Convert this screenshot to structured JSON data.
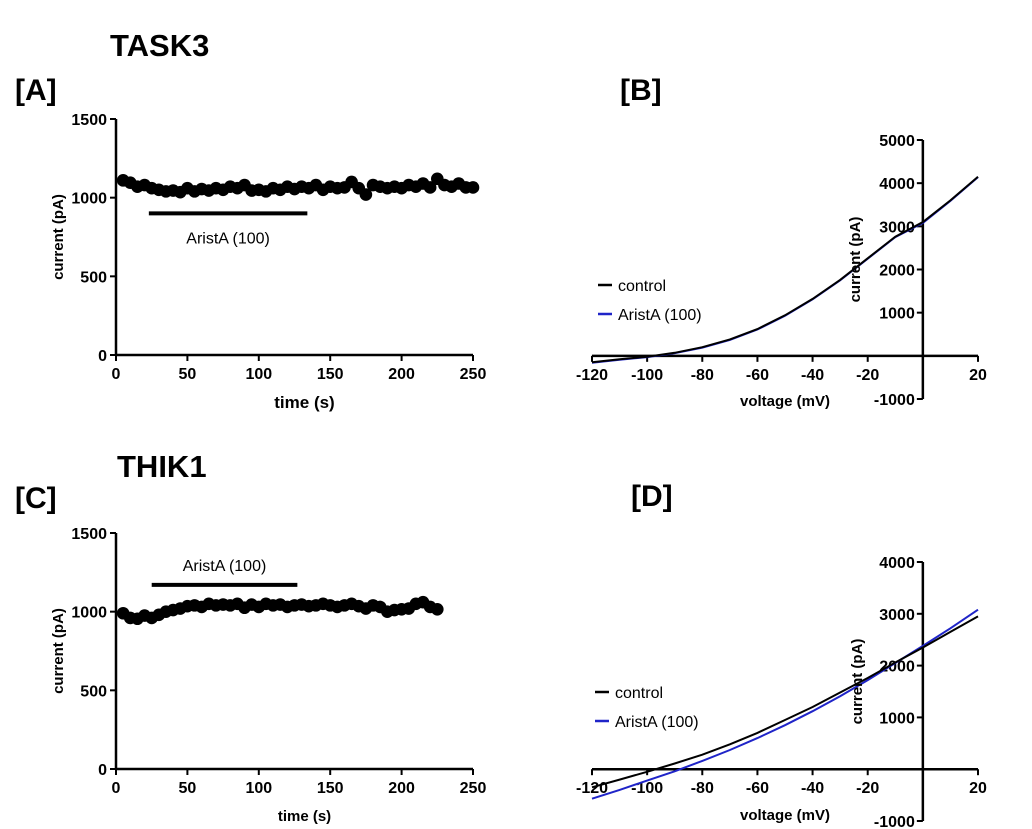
{
  "titles": {
    "top": "TASK3",
    "bottom": "THIK1"
  },
  "panel_labels": {
    "A": "[A]",
    "B": "[B]",
    "C": "[C]",
    "D": "[D]"
  },
  "chart_data": [
    {
      "id": "A",
      "type": "scatter",
      "xlabel": "time (s)",
      "ylabel": "current (pA)",
      "xlim": [
        0,
        250
      ],
      "ylim": [
        0,
        1500
      ],
      "xticks": [
        0,
        50,
        100,
        150,
        200,
        250
      ],
      "yticks": [
        0,
        500,
        1000,
        1500
      ],
      "annotation": {
        "text": "AristA (100)",
        "x_start": 23,
        "x_end": 134,
        "y": 900
      },
      "series": [
        {
          "color": "#000000",
          "x": [
            5,
            10,
            15,
            20,
            25,
            30,
            35,
            40,
            45,
            50,
            55,
            60,
            65,
            70,
            75,
            80,
            85,
            90,
            95,
            100,
            105,
            110,
            115,
            120,
            125,
            130,
            135,
            140,
            145,
            150,
            155,
            160,
            165,
            170,
            175,
            180,
            185,
            190,
            195,
            200,
            205,
            210,
            215,
            220,
            225,
            230,
            235,
            240,
            245,
            250
          ],
          "y": [
            1110,
            1095,
            1070,
            1080,
            1060,
            1050,
            1040,
            1045,
            1035,
            1060,
            1040,
            1055,
            1045,
            1060,
            1050,
            1070,
            1060,
            1080,
            1045,
            1050,
            1040,
            1060,
            1050,
            1070,
            1055,
            1070,
            1060,
            1080,
            1050,
            1070,
            1060,
            1065,
            1100,
            1060,
            1020,
            1080,
            1070,
            1060,
            1070,
            1060,
            1080,
            1070,
            1090,
            1065,
            1120,
            1080,
            1070,
            1090,
            1065,
            1065
          ]
        }
      ]
    },
    {
      "id": "B",
      "type": "line",
      "xlabel": "voltage (mV)",
      "ylabel": "current (pA)",
      "xlim": [
        -120,
        20
      ],
      "ylim": [
        -1000,
        5000
      ],
      "xticks": [
        -120,
        -100,
        -80,
        -60,
        -40,
        -20,
        20
      ],
      "yticks": [
        -1000,
        1000,
        2000,
        3000,
        4000,
        5000
      ],
      "legend": "left",
      "series": [
        {
          "name": "control",
          "color": "#000000",
          "x": [
            -120,
            -110,
            -100,
            -90,
            -80,
            -70,
            -60,
            -50,
            -40,
            -30,
            -20,
            -10,
            0,
            10,
            20
          ],
          "y": [
            -150,
            -80,
            -20,
            70,
            200,
            380,
            620,
            940,
            1320,
            1760,
            2260,
            2760,
            3100,
            3600,
            4150
          ]
        },
        {
          "name": "AristA (100)",
          "color": "#1f24c8",
          "x": [
            -120,
            -110,
            -100,
            -90,
            -80,
            -70,
            -60,
            -50,
            -40,
            -30,
            -20,
            -10,
            0,
            10,
            20
          ],
          "y": [
            -160,
            -90,
            -30,
            60,
            190,
            370,
            610,
            930,
            1310,
            1750,
            2250,
            2750,
            3080,
            3590,
            4140
          ]
        }
      ]
    },
    {
      "id": "C",
      "type": "scatter",
      "xlabel": "time (s)",
      "ylabel": "current (pA)",
      "xlim": [
        0,
        250
      ],
      "ylim": [
        0,
        1500
      ],
      "xticks": [
        0,
        50,
        100,
        150,
        200,
        250
      ],
      "yticks": [
        0,
        500,
        1000,
        1500
      ],
      "annotation": {
        "text": "AristA (100)",
        "x_start": 25,
        "x_end": 127,
        "y": 1170
      },
      "series": [
        {
          "color": "#000000",
          "x": [
            5,
            10,
            15,
            20,
            25,
            30,
            35,
            40,
            45,
            50,
            55,
            60,
            65,
            70,
            75,
            80,
            85,
            90,
            95,
            100,
            105,
            110,
            115,
            120,
            125,
            130,
            135,
            140,
            145,
            150,
            155,
            160,
            165,
            170,
            175,
            180,
            185,
            190,
            195,
            200,
            205,
            210,
            215,
            220,
            225
          ],
          "y": [
            990,
            960,
            955,
            975,
            960,
            980,
            1000,
            1010,
            1020,
            1035,
            1040,
            1030,
            1050,
            1040,
            1045,
            1040,
            1050,
            1025,
            1045,
            1030,
            1050,
            1040,
            1045,
            1030,
            1040,
            1045,
            1035,
            1040,
            1050,
            1040,
            1030,
            1040,
            1050,
            1035,
            1020,
            1040,
            1030,
            1000,
            1010,
            1015,
            1020,
            1050,
            1060,
            1030,
            1015
          ]
        }
      ]
    },
    {
      "id": "D",
      "type": "line",
      "xlabel": "voltage (mV)",
      "ylabel": "current (pA)",
      "xlim": [
        -120,
        20
      ],
      "ylim": [
        -1000,
        4000
      ],
      "xticks": [
        -120,
        -100,
        -80,
        -60,
        -40,
        -20,
        20
      ],
      "yticks": [
        -1000,
        1000,
        2000,
        3000,
        4000
      ],
      "legend": "left",
      "series": [
        {
          "name": "control",
          "color": "#000000",
          "x": [
            -120,
            -110,
            -100,
            -90,
            -80,
            -70,
            -60,
            -50,
            -40,
            -30,
            -20,
            -10,
            0,
            10,
            20
          ],
          "y": [
            -350,
            -200,
            -50,
            110,
            280,
            480,
            700,
            950,
            1200,
            1480,
            1760,
            2060,
            2350,
            2650,
            2950
          ]
        },
        {
          "name": "AristA (100)",
          "color": "#1f24c8",
          "x": [
            -120,
            -110,
            -100,
            -90,
            -80,
            -70,
            -60,
            -50,
            -40,
            -30,
            -20,
            -10,
            0,
            10,
            20
          ],
          "y": [
            -570,
            -400,
            -220,
            -40,
            160,
            370,
            600,
            850,
            1120,
            1410,
            1720,
            2050,
            2380,
            2720,
            3080
          ]
        }
      ]
    }
  ]
}
